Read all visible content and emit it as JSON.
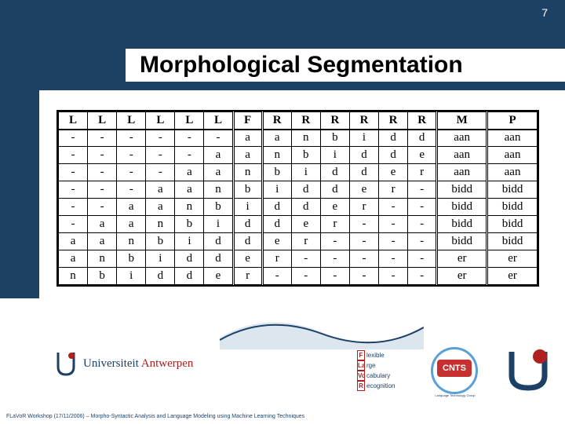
{
  "page_number": "7",
  "title": "Morphological Segmentation",
  "table": {
    "headers": [
      "L",
      "L",
      "L",
      "L",
      "L",
      "L",
      "F",
      "R",
      "R",
      "R",
      "R",
      "R",
      "R",
      "M",
      "P"
    ],
    "rows": [
      [
        "-",
        "-",
        "-",
        "-",
        "-",
        "-",
        "a",
        "a",
        "n",
        "b",
        "i",
        "d",
        "d",
        "aan",
        "aan"
      ],
      [
        "-",
        "-",
        "-",
        "-",
        "-",
        "a",
        "a",
        "n",
        "b",
        "i",
        "d",
        "d",
        "e",
        "aan",
        "aan"
      ],
      [
        "-",
        "-",
        "-",
        "-",
        "a",
        "a",
        "n",
        "b",
        "i",
        "d",
        "d",
        "e",
        "r",
        "aan",
        "aan"
      ],
      [
        "-",
        "-",
        "-",
        "a",
        "a",
        "n",
        "b",
        "i",
        "d",
        "d",
        "e",
        "r",
        "-",
        "bidd",
        "bidd"
      ],
      [
        "-",
        "-",
        "a",
        "a",
        "n",
        "b",
        "i",
        "d",
        "d",
        "e",
        "r",
        "-",
        "-",
        "bidd",
        "bidd"
      ],
      [
        "-",
        "a",
        "a",
        "n",
        "b",
        "i",
        "d",
        "d",
        "e",
        "r",
        "-",
        "-",
        "-",
        "bidd",
        "bidd"
      ],
      [
        "a",
        "a",
        "n",
        "b",
        "i",
        "d",
        "d",
        "e",
        "r",
        "-",
        "-",
        "-",
        "-",
        "bidd",
        "bidd"
      ],
      [
        "a",
        "n",
        "b",
        "i",
        "d",
        "d",
        "e",
        "r",
        "-",
        "-",
        "-",
        "-",
        "-",
        "er",
        "er"
      ],
      [
        "n",
        "b",
        "i",
        "d",
        "d",
        "e",
        "r",
        "-",
        "-",
        "-",
        "-",
        "-",
        "-",
        "er",
        "er"
      ]
    ]
  },
  "ua": {
    "prefix": "Universiteit",
    "suffix": "Antwerpen"
  },
  "flavor": [
    {
      "l": "F",
      "w": "lexible"
    },
    {
      "l": "La",
      "w": "rge"
    },
    {
      "l": "Vo",
      "w": "cabulary"
    },
    {
      "l": "R",
      "w": "ecognition"
    }
  ],
  "cnts": "CNTS",
  "footer": "FLaVoR Workshop (17/11/2006) – Morpho-Syntactic Analysis and Language Modeling using Machine Learning Techniques",
  "colors": {
    "band": "#1d4165",
    "red": "#b02020"
  }
}
